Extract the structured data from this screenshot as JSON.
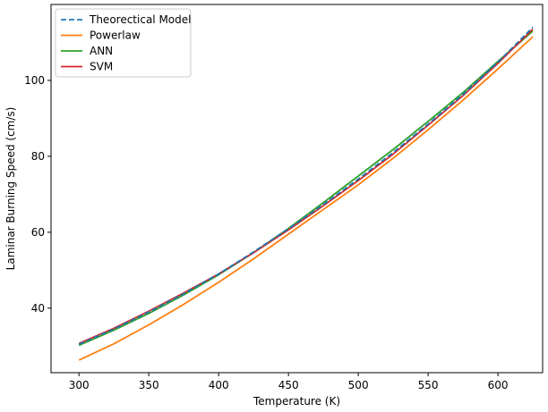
{
  "chart_data": {
    "type": "line",
    "title": "",
    "xlabel": "Temperature (K)",
    "ylabel": "Laminar Burning Speed (cm/s)",
    "xlim": [
      280,
      632
    ],
    "ylim": [
      23,
      120
    ],
    "x_ticks": [
      300,
      350,
      400,
      450,
      500,
      550,
      600
    ],
    "y_ticks": [
      40,
      60,
      80,
      100
    ],
    "grid": false,
    "legend_position": "top-left",
    "x": [
      300,
      325,
      350,
      375,
      400,
      425,
      450,
      475,
      500,
      525,
      550,
      575,
      600,
      625
    ],
    "series": [
      {
        "name": "Theorectical Model",
        "color": "#1f77b4",
        "dash": "dashed",
        "values": [
          30.5,
          34.5,
          39.0,
          43.8,
          49.0,
          54.8,
          60.9,
          67.3,
          74.0,
          81.0,
          88.5,
          96.3,
          104.8,
          114.0
        ]
      },
      {
        "name": "Powerlaw",
        "color": "#ff7f0e",
        "dash": "solid",
        "values": [
          26.3,
          30.6,
          35.6,
          41.0,
          46.8,
          53.0,
          59.5,
          66.0,
          72.5,
          79.5,
          87.0,
          94.8,
          103.0,
          111.5
        ]
      },
      {
        "name": "ANN",
        "color": "#2ca02c",
        "dash": "solid",
        "values": [
          30.2,
          34.2,
          38.6,
          43.5,
          48.8,
          54.6,
          61.0,
          67.8,
          74.8,
          81.8,
          89.2,
          96.8,
          105.0,
          113.0
        ]
      },
      {
        "name": "SVM",
        "color": "#d62728",
        "dash": "solid",
        "values": [
          30.7,
          34.7,
          39.2,
          44.0,
          49.0,
          54.6,
          60.6,
          67.0,
          73.6,
          80.6,
          88.2,
          96.0,
          104.5,
          113.5
        ]
      }
    ]
  }
}
